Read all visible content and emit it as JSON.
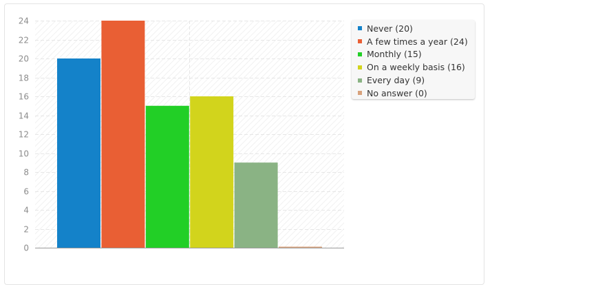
{
  "chart_data": {
    "type": "bar",
    "categories": [
      "Never",
      "A few times a year",
      "Monthly",
      "On a weekly basis",
      "Every day",
      "No answer"
    ],
    "values": [
      20,
      24,
      15,
      16,
      9,
      0
    ],
    "colors": [
      "#1482c9",
      "#e95f34",
      "#22cf26",
      "#d2d41c",
      "#8ab384",
      "#d8a27c"
    ],
    "ylim": [
      0,
      24
    ],
    "yticks": [
      0,
      2,
      4,
      6,
      8,
      10,
      12,
      14,
      16,
      18,
      20,
      22,
      24
    ],
    "grid": true,
    "legend_position": "right",
    "title": "",
    "xlabel": "",
    "ylabel": ""
  },
  "legend": {
    "items": [
      {
        "label": "Never (20)",
        "color": "#1482c9"
      },
      {
        "label": "A few times a year (24)",
        "color": "#e95f34"
      },
      {
        "label": "Monthly (15)",
        "color": "#22cf26"
      },
      {
        "label": "On a weekly basis (16)",
        "color": "#d2d41c"
      },
      {
        "label": "Every day (9)",
        "color": "#8ab384"
      },
      {
        "label": "No answer (0)",
        "color": "#d8a27c"
      }
    ]
  }
}
